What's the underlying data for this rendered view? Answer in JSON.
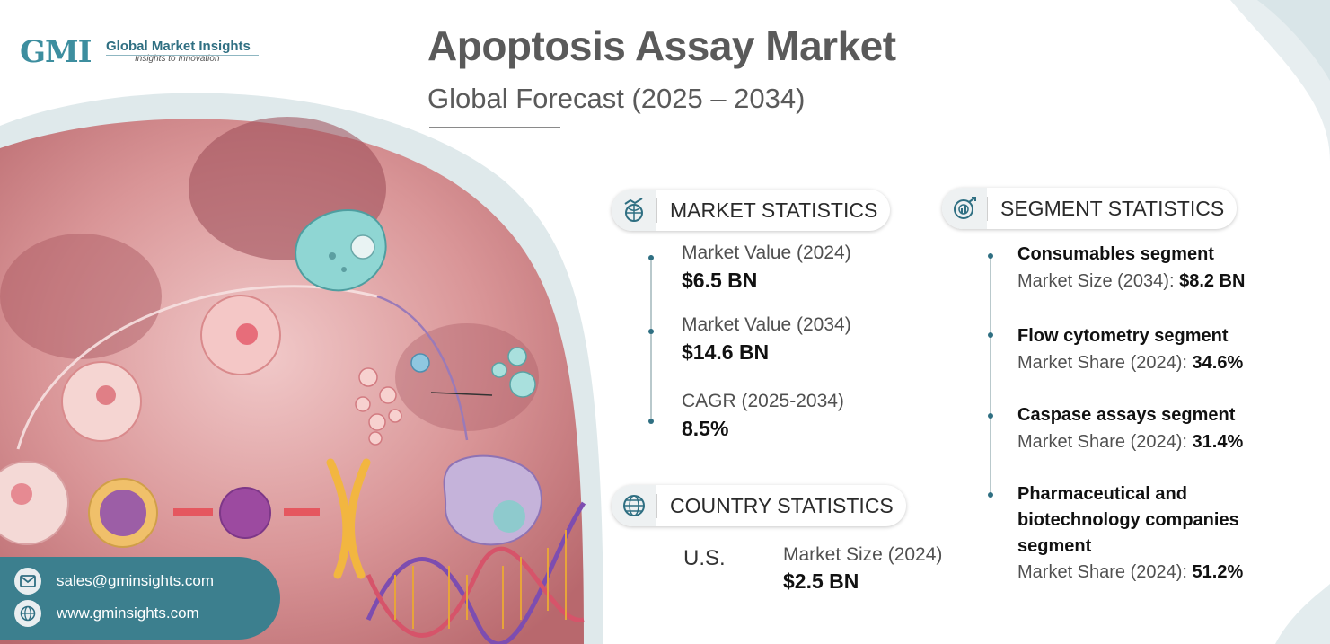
{
  "logo": {
    "mark": "GMI",
    "name": "Global Market Insights",
    "tagline": "Insights to Innovation"
  },
  "header": {
    "title": "Apoptosis Assay Market",
    "subtitle": "Global Forecast (2025 – 2034)"
  },
  "market_statistics": {
    "heading": "MARKET STATISTICS",
    "icon": "globe-chart-icon",
    "items": [
      {
        "label": "Market Value (2024)",
        "value": "$6.5 BN"
      },
      {
        "label": "Market Value (2034)",
        "value": "$14.6 BN"
      },
      {
        "label": "CAGR (2025-2034)",
        "value": "8.5%"
      }
    ]
  },
  "country_statistics": {
    "heading": "COUNTRY STATISTICS",
    "icon": "globe-icon",
    "country": "U.S.",
    "label": "Market Size (2024)",
    "value": "$2.5 BN"
  },
  "segment_statistics": {
    "heading": "SEGMENT STATISTICS",
    "icon": "target-chart-icon",
    "items": [
      {
        "name": "Consumables segment",
        "metric_label": "Market Size (2034): ",
        "metric_value": "$8.2 BN"
      },
      {
        "name": "Flow cytometry segment",
        "metric_label": "Market Share (2024): ",
        "metric_value": "34.6%"
      },
      {
        "name": "Caspase assays segment",
        "metric_label": "Market Share (2024): ",
        "metric_value": "31.4%"
      },
      {
        "name_lines": [
          "Pharmaceutical and",
          "biotechnology companies",
          "segment"
        ],
        "metric_label": "Market Share (2024): ",
        "metric_value": "51.2%"
      }
    ]
  },
  "contact": {
    "email": "sales@gminsights.com",
    "website": "www.gminsights.com",
    "email_icon": "envelope-icon",
    "web_icon": "globe-icon"
  },
  "colors": {
    "accent": "#2f6f82",
    "contact_bg": "#3c7f8e",
    "title": "#5a5a5a"
  }
}
